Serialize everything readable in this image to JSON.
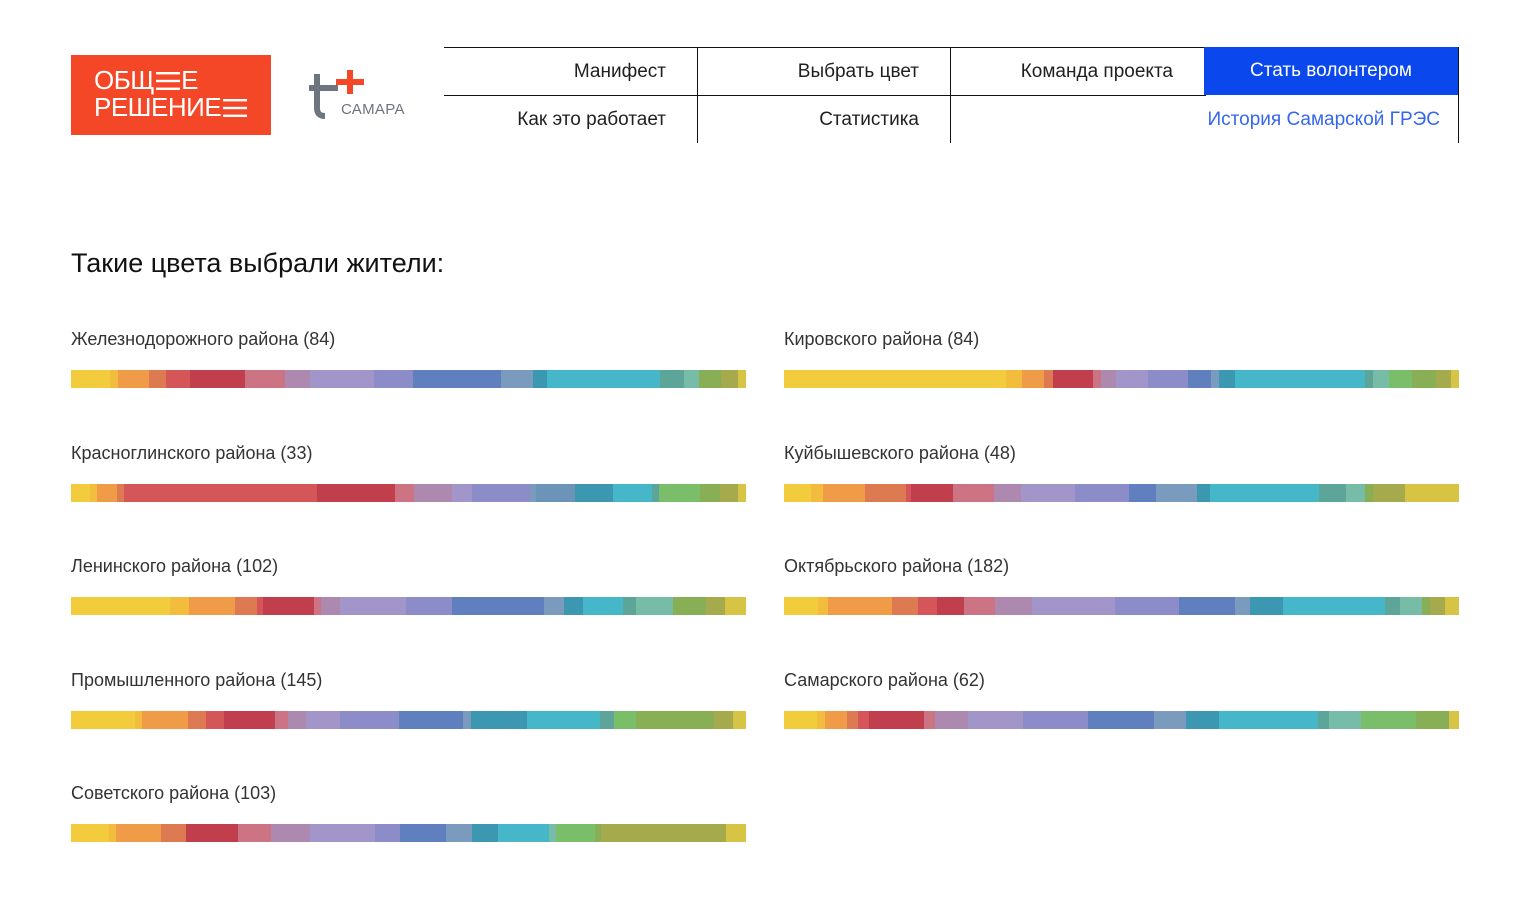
{
  "header": {
    "logo_main": {
      "line1_left": "ОБЩ",
      "line1_right": "Е",
      "line2": "РЕШЕНИЕ",
      "color": "#f44728"
    },
    "logo_sub": {
      "city": "САМАРА"
    },
    "nav": {
      "manifest": "Манифест",
      "choose_color": "Выбрать цвет",
      "team": "Команда проекта",
      "volunteer": "Стать волонтером",
      "how_it_works": "Как это работает",
      "statistics": "Статистика",
      "history": "История Самарской ГРЭС"
    },
    "accent_color": "#0a48ee"
  },
  "main": {
    "title": "Такие цвета выбрали жители:",
    "districts": [
      {
        "label": "Железнодорожного района (84)",
        "segments": [
          [
            "#f2cc3d",
            5.8
          ],
          [
            "#f2bd3d",
            1.2
          ],
          [
            "#ef9b47",
            4.6
          ],
          [
            "#dd7a51",
            2.5
          ],
          [
            "#d55658",
            3.5
          ],
          [
            "#c13e4d",
            8.2
          ],
          [
            "#cc7484",
            5.9
          ],
          [
            "#ad89b0",
            3.7
          ],
          [
            "#a195c9",
            9.5
          ],
          [
            "#8b8cc8",
            5.7
          ],
          [
            "#5f7fbe",
            13.1
          ],
          [
            "#7b9bbe",
            4.7
          ],
          [
            "#3b98b0",
            2.2
          ],
          [
            "#46b7c9",
            16.6
          ],
          [
            "#5da598",
            3.6
          ],
          [
            "#77bca6",
            2.2
          ],
          [
            "#88af55",
            3.3
          ],
          [
            "#a5aa4d",
            2.6
          ],
          [
            "#d7c444",
            1.1
          ]
        ]
      },
      {
        "label": "Кировского района (84)",
        "segments": [
          [
            "#f2cc3d",
            33.0
          ],
          [
            "#f2bd3d",
            2.4
          ],
          [
            "#ef9b47",
            3.3
          ],
          [
            "#dd7a51",
            1.3
          ],
          [
            "#c13e4d",
            5.9
          ],
          [
            "#cc7484",
            1.2
          ],
          [
            "#ad89b0",
            2.3
          ],
          [
            "#a195c9",
            4.7
          ],
          [
            "#8b8cc8",
            5.9
          ],
          [
            "#5f7fbe",
            3.5
          ],
          [
            "#7b9bbe",
            1.2
          ],
          [
            "#3b98b0",
            2.3
          ],
          [
            "#46b7c9",
            19.4
          ],
          [
            "#5da598",
            1.2
          ],
          [
            "#77bca6",
            2.3
          ],
          [
            "#7bbe6a",
            3.5
          ],
          [
            "#88af55",
            3.5
          ],
          [
            "#a5aa4d",
            2.3
          ],
          [
            "#d7c444",
            1.1
          ]
        ]
      },
      {
        "label": "Красноглинского района (33)",
        "segments": [
          [
            "#f2cc3d",
            2.8
          ],
          [
            "#f2bd3d",
            1.0
          ],
          [
            "#ef9b47",
            3.0
          ],
          [
            "#dd7a51",
            1.0
          ],
          [
            "#d55658",
            28.6
          ],
          [
            "#c13e4d",
            11.5
          ],
          [
            "#cc7484",
            2.9
          ],
          [
            "#ad89b0",
            5.6
          ],
          [
            "#a195c9",
            2.9
          ],
          [
            "#8b8cc8",
            8.6
          ],
          [
            "#7b9bbe",
            1.0
          ],
          [
            "#6c94b8",
            5.7
          ],
          [
            "#3b98b0",
            5.7
          ],
          [
            "#46b7c9",
            5.7
          ],
          [
            "#5da598",
            1.0
          ],
          [
            "#7bbe6a",
            6.1
          ],
          [
            "#88af55",
            2.9
          ],
          [
            "#a5aa4d",
            2.8
          ],
          [
            "#d7c444",
            1.1
          ]
        ]
      },
      {
        "label": "Куйбышевского района (48)",
        "segments": [
          [
            "#f2cc3d",
            4.0
          ],
          [
            "#f2bd3d",
            1.9
          ],
          [
            "#ef9b47",
            6.2
          ],
          [
            "#dd7a51",
            6.1
          ],
          [
            "#d55658",
            0.8
          ],
          [
            "#c13e4d",
            6.2
          ],
          [
            "#cc7484",
            6.2
          ],
          [
            "#ad89b0",
            4.0
          ],
          [
            "#a195c9",
            8.1
          ],
          [
            "#8b8cc8",
            8.1
          ],
          [
            "#5f7fbe",
            4.0
          ],
          [
            "#7b9bbe",
            6.2
          ],
          [
            "#3b98b0",
            1.9
          ],
          [
            "#46b7c9",
            16.3
          ],
          [
            "#5da598",
            4.0
          ],
          [
            "#77bca6",
            2.9
          ],
          [
            "#88af55",
            1.2
          ],
          [
            "#a5aa4d",
            4.7
          ],
          [
            "#d7c444",
            8.1
          ]
        ]
      },
      {
        "label": "Ленинского района (102)",
        "segments": [
          [
            "#f2cc3d",
            14.8
          ],
          [
            "#f2bd3d",
            2.8
          ],
          [
            "#ef9b47",
            6.9
          ],
          [
            "#dd7a51",
            3.2
          ],
          [
            "#d55658",
            1.0
          ],
          [
            "#c13e4d",
            7.6
          ],
          [
            "#cc7484",
            1.0
          ],
          [
            "#ad89b0",
            2.9
          ],
          [
            "#a195c9",
            9.8
          ],
          [
            "#8b8cc8",
            6.8
          ],
          [
            "#5f7fbe",
            13.8
          ],
          [
            "#7b9bbe",
            2.9
          ],
          [
            "#3b98b0",
            2.9
          ],
          [
            "#46b7c9",
            5.9
          ],
          [
            "#5da598",
            2.0
          ],
          [
            "#77bca6",
            5.5
          ],
          [
            "#88af55",
            4.9
          ],
          [
            "#a5aa4d",
            2.9
          ],
          [
            "#d7c444",
            3.1
          ]
        ]
      },
      {
        "label": "Октябрьского района (182)",
        "segments": [
          [
            "#f2cc3d",
            4.9
          ],
          [
            "#f2bd3d",
            1.5
          ],
          [
            "#ef9b47",
            9.3
          ],
          [
            "#dd7a51",
            3.8
          ],
          [
            "#d55658",
            2.7
          ],
          [
            "#c13e4d",
            3.9
          ],
          [
            "#cc7484",
            4.5
          ],
          [
            "#ad89b0",
            5.4
          ],
          [
            "#a195c9",
            12.0
          ],
          [
            "#8b8cc8",
            9.3
          ],
          [
            "#5f7fbe",
            8.2
          ],
          [
            "#7b9bbe",
            2.2
          ],
          [
            "#3b98b0",
            4.8
          ],
          [
            "#46b7c9",
            14.7
          ],
          [
            "#5da598",
            2.2
          ],
          [
            "#77bca6",
            3.2
          ],
          [
            "#88af55",
            1.2
          ],
          [
            "#a5aa4d",
            2.2
          ],
          [
            "#d7c444",
            2.0
          ]
        ]
      },
      {
        "label": "Промышленного района (145)",
        "segments": [
          [
            "#f2cc3d",
            9.5
          ],
          [
            "#f2bd3d",
            1.0
          ],
          [
            "#ef9b47",
            6.8
          ],
          [
            "#dd7a51",
            2.7
          ],
          [
            "#d55658",
            2.6
          ],
          [
            "#c13e4d",
            7.6
          ],
          [
            "#cc7484",
            2.0
          ],
          [
            "#ad89b0",
            2.6
          ],
          [
            "#a195c9",
            5.0
          ],
          [
            "#8b8cc8",
            8.8
          ],
          [
            "#5f7fbe",
            9.5
          ],
          [
            "#7b9bbe",
            1.2
          ],
          [
            "#3b98b0",
            8.3
          ],
          [
            "#46b7c9",
            10.8
          ],
          [
            "#5da598",
            2.0
          ],
          [
            "#7bbe6a",
            3.3
          ],
          [
            "#88af55",
            11.6
          ],
          [
            "#a5aa4d",
            2.8
          ],
          [
            "#d7c444",
            1.9
          ]
        ]
      },
      {
        "label": "Самарского района (62)",
        "segments": [
          [
            "#f2cc3d",
            4.9
          ],
          [
            "#f2bd3d",
            1.1
          ],
          [
            "#ef9b47",
            3.3
          ],
          [
            "#dd7a51",
            1.6
          ],
          [
            "#d55658",
            1.6
          ],
          [
            "#c13e4d",
            8.1
          ],
          [
            "#cc7484",
            1.6
          ],
          [
            "#ad89b0",
            4.8
          ],
          [
            "#a195c9",
            8.1
          ],
          [
            "#8b8cc8",
            9.6
          ],
          [
            "#5f7fbe",
            9.6
          ],
          [
            "#7b9bbe",
            4.8
          ],
          [
            "#3b98b0",
            4.8
          ],
          [
            "#46b7c9",
            14.5
          ],
          [
            "#5da598",
            1.6
          ],
          [
            "#77bca6",
            4.8
          ],
          [
            "#7bbe6a",
            8.0
          ],
          [
            "#88af55",
            4.8
          ],
          [
            "#d7c444",
            1.5
          ]
        ]
      },
      {
        "label": "Советского района (103)",
        "segments": [
          [
            "#f2cc3d",
            5.6
          ],
          [
            "#f2bd3d",
            1.0
          ],
          [
            "#ef9b47",
            6.7
          ],
          [
            "#dd7a51",
            3.8
          ],
          [
            "#c13e4d",
            7.7
          ],
          [
            "#cc7484",
            4.9
          ],
          [
            "#ad89b0",
            5.7
          ],
          [
            "#a195c9",
            9.6
          ],
          [
            "#8b8cc8",
            3.8
          ],
          [
            "#5f7fbe",
            6.8
          ],
          [
            "#7b9bbe",
            3.8
          ],
          [
            "#3b98b0",
            3.8
          ],
          [
            "#46b7c9",
            7.7
          ],
          [
            "#77bca6",
            1.0
          ],
          [
            "#7bbe6a",
            5.7
          ],
          [
            "#88af55",
            1.0
          ],
          [
            "#a5aa4d",
            18.5
          ],
          [
            "#d7c444",
            2.9
          ]
        ]
      }
    ]
  }
}
